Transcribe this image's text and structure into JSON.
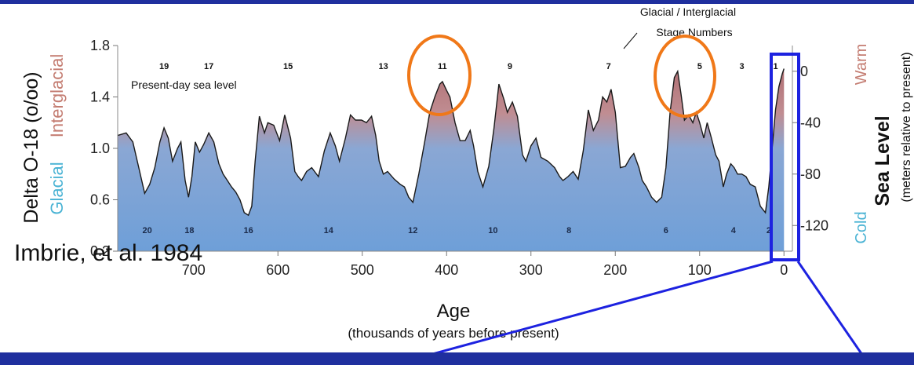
{
  "credit": "Imbrie, et al. 1984",
  "chart_data": {
    "type": "area",
    "title": "",
    "xlabel": "Age",
    "xlabel_sub": "(thousands of years before present)",
    "ylabel_left": "Delta O-18 (o/oo)",
    "ylabel_left_top": "Interglacial",
    "ylabel_left_bottom": "Glacial",
    "ylabel_right": "Sea Level",
    "ylabel_right_sub": "(meters relative to present)",
    "ylabel_right_top": "Warm",
    "ylabel_right_bottom": "Cold",
    "xlim": [
      790,
      -10
    ],
    "ylim": [
      0.2,
      1.8
    ],
    "x_ticks": [
      "700",
      "600",
      "500",
      "400",
      "300",
      "200",
      "100",
      "0"
    ],
    "x_tick_values": [
      700,
      600,
      500,
      400,
      300,
      200,
      100,
      0
    ],
    "y_ticks_left": [
      "0.2",
      "0.6",
      "1.0",
      "1.4",
      "1.8"
    ],
    "y_ticks_left_values": [
      0.2,
      0.6,
      1.0,
      1.4,
      1.8
    ],
    "y_ticks_right": [
      "0",
      "-40",
      "-80",
      "-120"
    ],
    "y_ticks_right_o18": [
      1.6,
      1.2,
      0.8,
      0.4
    ],
    "present_day_label": "Present-day sea level",
    "stage_annotation": "Glacial / Interglacial\nStage Numbers",
    "stages_top": [
      {
        "label": "19",
        "age": 735
      },
      {
        "label": "17",
        "age": 682
      },
      {
        "label": "15",
        "age": 588
      },
      {
        "label": "13",
        "age": 475
      },
      {
        "label": "11",
        "age": 405
      },
      {
        "label": "9",
        "age": 325
      },
      {
        "label": "7",
        "age": 208
      },
      {
        "label": "5",
        "age": 100
      },
      {
        "label": "3",
        "age": 50
      },
      {
        "label": "1",
        "age": 10
      }
    ],
    "stages_bottom": [
      {
        "label": "20",
        "age": 755
      },
      {
        "label": "18",
        "age": 705
      },
      {
        "label": "16",
        "age": 635
      },
      {
        "label": "14",
        "age": 540
      },
      {
        "label": "12",
        "age": 440
      },
      {
        "label": "10",
        "age": 345
      },
      {
        "label": "8",
        "age": 255
      },
      {
        "label": "6",
        "age": 140
      },
      {
        "label": "4",
        "age": 60
      },
      {
        "label": "2",
        "age": 18
      }
    ],
    "series": [
      {
        "x": [
          790,
          780,
          772,
          765,
          758,
          752,
          746,
          740,
          735,
          730,
          725,
          719,
          715,
          710,
          706,
          702,
          698,
          693,
          688,
          682,
          676,
          670,
          665,
          660,
          655,
          650,
          645,
          640,
          635,
          631,
          627,
          622,
          616,
          612,
          605,
          598,
          592,
          585,
          580,
          576,
          572,
          566,
          560,
          552,
          545,
          538,
          532,
          527,
          520,
          514,
          508,
          501,
          495,
          489,
          484,
          480,
          475,
          470,
          462,
          455,
          450,
          445,
          440,
          433,
          426,
          420,
          414,
          408,
          405,
          400,
          396,
          390,
          384,
          378,
          372,
          368,
          363,
          357,
          350,
          344,
          338,
          332,
          328,
          322,
          316,
          310,
          306,
          300,
          294,
          288,
          280,
          272,
          266,
          262,
          256,
          250,
          244,
          238,
          232,
          226,
          220,
          215,
          210,
          205,
          200,
          194,
          188,
          182,
          178,
          172,
          168,
          163,
          157,
          151,
          145,
          140,
          135,
          130,
          126,
          122,
          118,
          113,
          108,
          104,
          100,
          95,
          91,
          86,
          81,
          77,
          72,
          68,
          63,
          59,
          55,
          50,
          45,
          40,
          34,
          28,
          22,
          18,
          14,
          10,
          6,
          2,
          0
        ],
        "y": [
          1.1,
          1.12,
          1.05,
          0.85,
          0.65,
          0.72,
          0.85,
          1.05,
          1.16,
          1.08,
          0.9,
          1.0,
          1.05,
          0.75,
          0.62,
          0.78,
          1.05,
          0.97,
          1.03,
          1.12,
          1.05,
          0.88,
          0.8,
          0.75,
          0.7,
          0.66,
          0.6,
          0.5,
          0.48,
          0.55,
          0.9,
          1.25,
          1.12,
          1.2,
          1.18,
          1.06,
          1.26,
          1.08,
          0.82,
          0.78,
          0.75,
          0.82,
          0.85,
          0.78,
          0.98,
          1.12,
          1.02,
          0.9,
          1.08,
          1.26,
          1.22,
          1.22,
          1.2,
          1.25,
          1.1,
          0.9,
          0.8,
          0.82,
          0.76,
          0.72,
          0.7,
          0.62,
          0.58,
          0.8,
          1.05,
          1.28,
          1.4,
          1.5,
          1.52,
          1.45,
          1.4,
          1.2,
          1.06,
          1.06,
          1.14,
          1.02,
          0.82,
          0.7,
          0.86,
          1.15,
          1.5,
          1.38,
          1.28,
          1.36,
          1.25,
          0.95,
          0.9,
          1.02,
          1.08,
          0.93,
          0.9,
          0.85,
          0.78,
          0.75,
          0.78,
          0.82,
          0.76,
          0.98,
          1.3,
          1.14,
          1.22,
          1.4,
          1.36,
          1.46,
          1.28,
          0.85,
          0.86,
          0.93,
          0.96,
          0.85,
          0.75,
          0.7,
          0.62,
          0.58,
          0.62,
          0.85,
          1.28,
          1.55,
          1.6,
          1.42,
          1.22,
          1.26,
          1.2,
          1.28,
          1.2,
          1.08,
          1.2,
          1.08,
          0.95,
          0.9,
          0.7,
          0.8,
          0.88,
          0.85,
          0.8,
          0.8,
          0.78,
          0.72,
          0.7,
          0.55,
          0.5,
          0.7,
          1.0,
          1.3,
          1.48,
          1.58,
          1.62
        ]
      }
    ]
  },
  "highlights": [
    {
      "shape": "ellipse",
      "label": "stage-11-highlight",
      "color": "#f07818"
    },
    {
      "shape": "ellipse",
      "label": "stage-5-highlight",
      "color": "#f07818"
    },
    {
      "shape": "rect",
      "label": "zoom-box",
      "color": "#1d22e0"
    }
  ],
  "colors": {
    "glacial": "#6e9fd8",
    "interglacial": "#b37478",
    "brand_blue": "#1f2f9e",
    "zoom": "#1d22e0",
    "circle": "#f07818"
  }
}
